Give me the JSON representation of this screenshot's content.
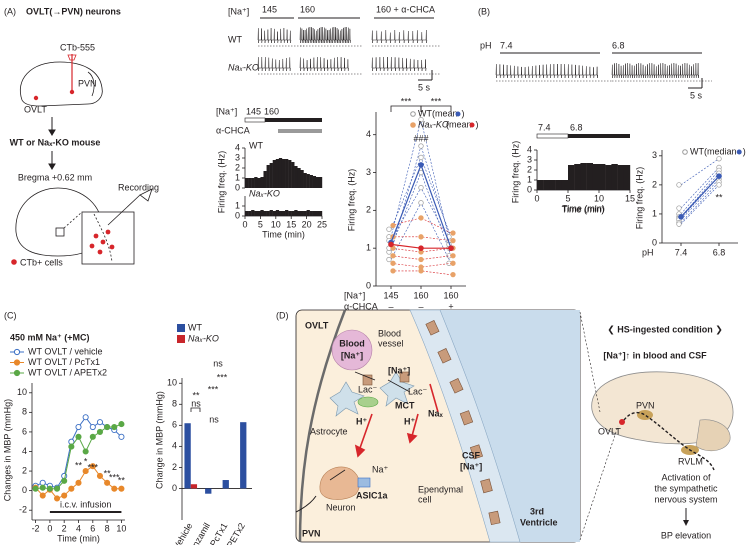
{
  "panel_labels": [
    "(A)",
    "(B)",
    "(C)",
    "(D)"
  ],
  "panel_a": {
    "title": "OVLT(→PVN) neurons",
    "tracer": "CTb-555",
    "pvn": "PVN",
    "ovlt": "OVLT",
    "mouse": "WT or Naₓ-KO mouse",
    "bregma": "Bregma +0.62 mm",
    "recording": "Recording",
    "cells": "CTb+ cells",
    "trace_na": "[Na⁺]",
    "trace_conditions": [
      "145",
      "160",
      "160 + α-CHCA"
    ],
    "trace_rows": [
      "WT",
      "Naₓ-KO"
    ],
    "scale": "5 s",
    "hist_na": "[Na⁺]",
    "hist_na_steps": [
      "145",
      "160"
    ],
    "hist_drug": "α-CHCA"
  },
  "panel_b": {
    "trace_ph": "pH",
    "trace_conditions": [
      "7.4",
      "6.8"
    ],
    "scale": "5 s",
    "hist_ph_steps": [
      "7.4",
      "6.8"
    ]
  },
  "panel_d": {
    "ovlt": "OVLT",
    "blood": "Blood",
    "blood_na": "[Na⁺]",
    "vessel": [
      "Blood",
      "vessel"
    ],
    "na_in": "[Na⁺]",
    "lac_left": "Lac⁻",
    "mct": "MCT",
    "lac_right": "Lac⁻",
    "nax": "Naₓ",
    "astrocyte": "Astrocyte",
    "h_left": "H⁺",
    "h_right": "H⁺",
    "csf": "CSF",
    "csf_na": "[Na⁺]",
    "na_neuron": "Na⁺",
    "asic": "ASIC1a",
    "neuron": "Neuron",
    "ependymal": [
      "Ependymal",
      "cell"
    ],
    "ventricle": [
      "3rd",
      "Ventricle"
    ],
    "pvn": "PVN",
    "condition": "❮ HS-ingested condition ❯",
    "na_rise": "[Na⁺]↑ in blood and CSF",
    "brain_pvn": "PVN",
    "brain_ovlt": "OVLT",
    "rvlm": "RVLM",
    "activation": [
      "Activation of",
      "the sympathetic",
      "nervous system"
    ],
    "bp": "BP elevation"
  },
  "chart_data": [
    {
      "type": "histogram",
      "series_label": "WT",
      "color": "#231f20",
      "bins": [
        0,
        1,
        2,
        3,
        4,
        5,
        6,
        7,
        8,
        9,
        10,
        11,
        12,
        13,
        14,
        15,
        16,
        17,
        18,
        19,
        20,
        21,
        22,
        23,
        24,
        25
      ],
      "values": [
        1.0,
        1.0,
        1.0,
        1.1,
        1.0,
        1.1,
        1.7,
        2.3,
        2.5,
        2.8,
        2.9,
        3.0,
        2.9,
        2.9,
        2.8,
        2.6,
        2.2,
        2.0,
        1.8,
        1.5,
        1.4,
        1.3,
        1.2,
        1.1,
        1.1
      ],
      "xlim": [
        0,
        25
      ],
      "ylim": [
        0,
        4
      ],
      "yticks": [
        0,
        1,
        2,
        3,
        4
      ],
      "y_label": "Firing freq. (Hz)"
    },
    {
      "type": "histogram",
      "series_label": "Naₓ-KO",
      "color": "#231f20",
      "bins": [
        0,
        1,
        2,
        3,
        4,
        5,
        6,
        7,
        8,
        9,
        10,
        11,
        12,
        13,
        14,
        15,
        16,
        17,
        18,
        19,
        20,
        21,
        22,
        23,
        24,
        25
      ],
      "values": [
        0.5,
        0.5,
        0.6,
        0.5,
        0.5,
        0.6,
        0.5,
        0.5,
        0.6,
        0.5,
        0.6,
        0.5,
        0.5,
        0.6,
        0.5,
        0.5,
        0.6,
        0.5,
        0.5,
        0.5,
        0.6,
        0.5,
        0.5,
        0.5,
        0.5
      ],
      "xlim": [
        0,
        25
      ],
      "xticks": [
        0,
        5,
        10,
        15,
        20,
        25
      ],
      "ylim": [
        0,
        2
      ],
      "yticks": [
        0,
        1
      ],
      "x_label": "Time (min)"
    },
    {
      "type": "paired",
      "y_label": "Firing freq. (Hz)",
      "categories": [
        "145",
        "160",
        "160"
      ],
      "category_row_label": "[Na⁺]",
      "drug_row_label": "α-CHCA",
      "drug": [
        "–",
        "–",
        "+"
      ],
      "ylim": [
        0,
        4.6
      ],
      "yticks": [
        0,
        1,
        2,
        3,
        4
      ],
      "series": [
        {
          "name": "WT",
          "color": "#3b5bb5",
          "values": [
            1.15,
            3.2,
            1.0
          ],
          "individual_color": "#9a9a9a",
          "individual_marker": "open",
          "individual": [
            [
              1.3,
              4.4,
              1.0
            ],
            [
              0.9,
              3.7,
              1.2
            ],
            [
              1.5,
              3.4,
              1.3
            ],
            [
              1.0,
              3.0,
              0.8
            ],
            [
              1.2,
              2.6,
              1.1
            ],
            [
              0.7,
              2.2,
              0.6
            ]
          ]
        },
        {
          "name": "Naₓ-KO",
          "color": "#d7262b",
          "values": [
            1.1,
            1.0,
            1.0
          ],
          "individual_color": "#e8a268",
          "individual_marker": "filled",
          "individual": [
            [
              1.6,
              1.8,
              1.4
            ],
            [
              1.3,
              1.3,
              1.2
            ],
            [
              1.0,
              0.9,
              1.0
            ],
            [
              0.8,
              0.7,
              0.8
            ],
            [
              0.6,
              0.5,
              0.6
            ],
            [
              0.4,
              0.4,
              0.3
            ]
          ]
        }
      ],
      "legend_open": "(mean",
      "legend_close": ")",
      "annotations": [
        "***",
        "***",
        "###"
      ]
    },
    {
      "type": "histogram",
      "color": "#231f20",
      "bins": [
        0,
        1,
        2,
        3,
        4,
        5,
        6,
        7,
        8,
        9,
        10,
        11,
        12,
        13,
        14,
        15
      ],
      "values": [
        1.0,
        1.0,
        1.0,
        1.0,
        1.0,
        2.5,
        2.6,
        2.7,
        2.7,
        2.6,
        2.6,
        2.5,
        2.6,
        2.5,
        2.5
      ],
      "xlim": [
        0,
        15
      ],
      "xticks": [
        0,
        5,
        10,
        15
      ],
      "ylim": [
        0,
        4
      ],
      "yticks": [
        0,
        1,
        2,
        3,
        4
      ],
      "x_label": "Time (min)",
      "y_label": "Firing freq. (Hz)"
    },
    {
      "type": "paired",
      "x_label": "pH",
      "categories": [
        "7.4",
        "6.8"
      ],
      "ylim": [
        0,
        3.2
      ],
      "yticks": [
        0,
        1,
        2,
        3
      ],
      "y_label": "Firing freq. (Hz)",
      "series": [
        {
          "name": "WT",
          "color": "#3b5bb5",
          "values": [
            0.9,
            2.3
          ],
          "individual_color": "#9a9a9a",
          "individual_marker": "open",
          "individual": [
            [
              2.0,
              2.9
            ],
            [
              1.2,
              2.6
            ],
            [
              1.0,
              2.5
            ],
            [
              0.9,
              2.4
            ],
            [
              0.85,
              2.3
            ],
            [
              0.8,
              2.2
            ],
            [
              0.7,
              2.1
            ],
            [
              0.65,
              2.0
            ]
          ]
        }
      ],
      "legend_open": "(median",
      "legend_close": ")",
      "annotations": [
        "**"
      ]
    },
    {
      "type": "line",
      "title": "450 mM Na⁺ (+MC)",
      "x": [
        -2,
        -1,
        0,
        1,
        2,
        3,
        4,
        5,
        6,
        7,
        8,
        9,
        10
      ],
      "xlim": [
        -2.5,
        10.5
      ],
      "xticks": [
        -2,
        0,
        2,
        4,
        6,
        8,
        10
      ],
      "ylim": [
        -3,
        11
      ],
      "yticks": [
        -2,
        0,
        2,
        4,
        6,
        8,
        10
      ],
      "x_label": "Time (min)",
      "y_label": "Changes in MBP (mmHg)",
      "infusion_label": "i.c.v. infusion",
      "series": [
        {
          "name": "WT OVLT / vehicle",
          "color": "#3b6fc4",
          "marker": "open",
          "values": [
            0.5,
            0.8,
            0.5,
            0.3,
            1.5,
            5.0,
            6.5,
            7.5,
            6.5,
            7.0,
            6.5,
            6.2,
            5.5
          ]
        },
        {
          "name": "WT OVLT / PcTx1",
          "color": "#e8882a",
          "marker": "filled",
          "values": [
            0.3,
            -0.5,
            0.1,
            -0.8,
            -0.5,
            0.2,
            0.8,
            2.0,
            2.5,
            1.5,
            0.8,
            0.2,
            0.2
          ]
        },
        {
          "name": "WT OVLT / APETx2",
          "color": "#5aa846",
          "marker": "filled",
          "values": [
            0.2,
            0.3,
            0.2,
            0.2,
            1.0,
            4.5,
            5.5,
            4.0,
            5.5,
            6.0,
            6.5,
            6.5,
            6.8
          ]
        }
      ],
      "annotations": [
        "**",
        "*",
        "***",
        "**",
        "***",
        "**"
      ]
    },
    {
      "type": "bar",
      "categories": [
        "Vehicle",
        "Benzamil",
        "PcTx1",
        "APETx2"
      ],
      "series": [
        {
          "name": "WT",
          "color": "#2c4fa0",
          "values": [
            6.2,
            -0.5,
            0.8,
            6.3
          ]
        },
        {
          "name": "Naₓ-KO",
          "color": "#c8262b",
          "values": [
            0.4,
            null,
            null,
            null
          ]
        }
      ],
      "ylim": [
        -3,
        10.5
      ],
      "yticks": [
        0,
        2,
        4,
        6,
        8,
        10
      ],
      "y_label": "Change in MBP (mmHg)",
      "annotations": [
        "ns",
        "***",
        "***",
        "ns",
        "**",
        "ns"
      ]
    }
  ]
}
